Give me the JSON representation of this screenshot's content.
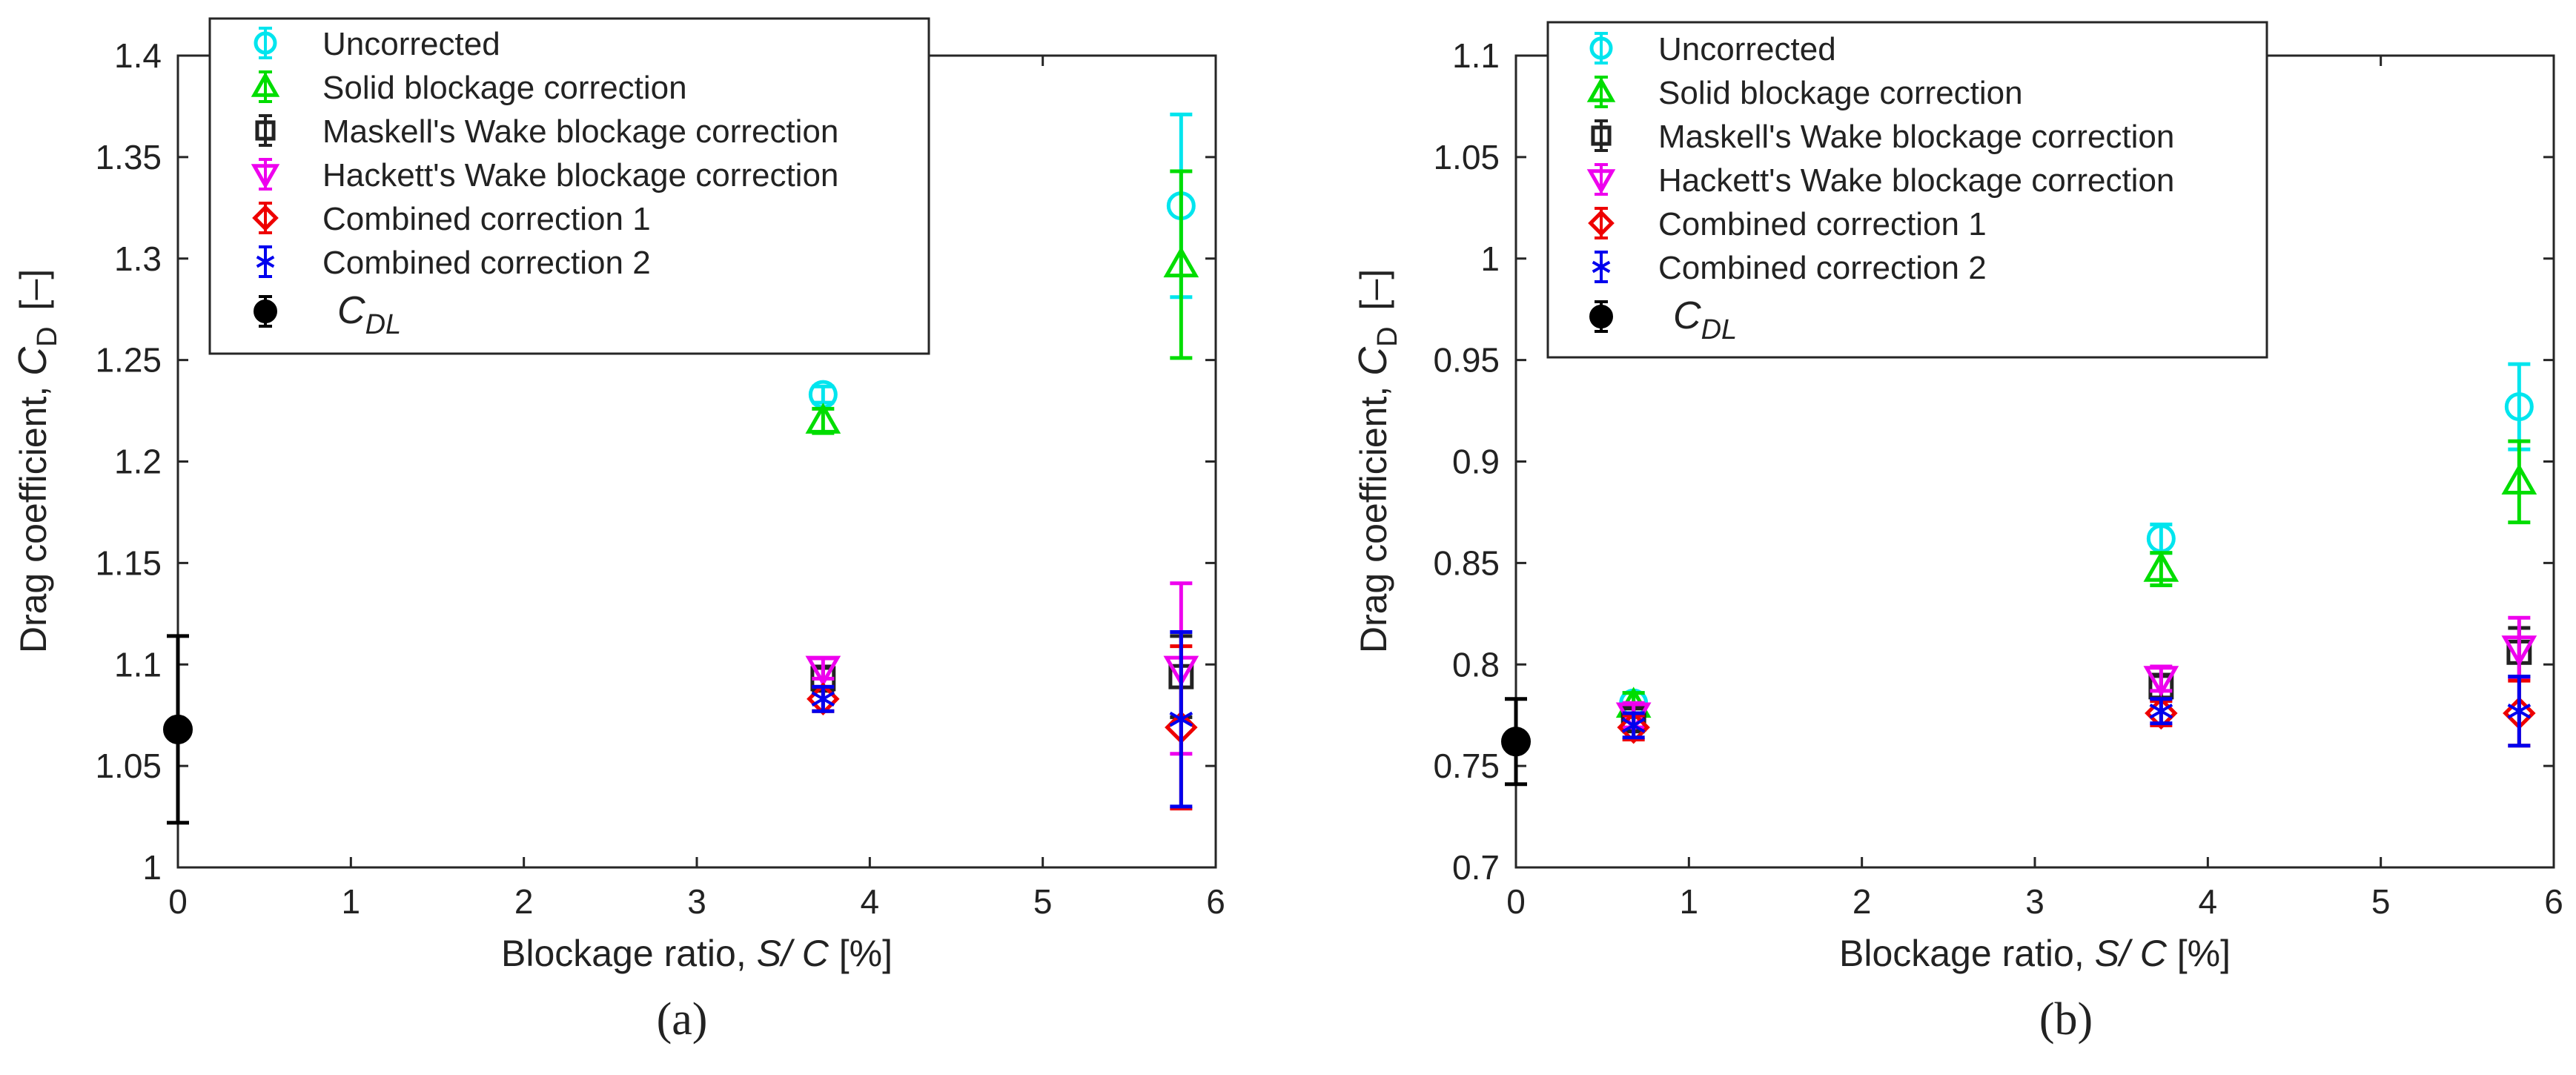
{
  "chart_data": [
    {
      "type": "scatter",
      "panel_caption": "(a)",
      "xlabel_prefix": "Blockage ratio, ",
      "xlabel_var": "S/ C",
      "xlabel_unit": " [%]",
      "ylabel_prefix": "Drag coefficient, ",
      "ylabel_var": "C",
      "ylabel_sub": "D",
      "ylabel_unit": "[–]",
      "xlim": [
        0,
        6
      ],
      "ylim": [
        1.0,
        1.4
      ],
      "xticks": [
        0,
        1,
        2,
        3,
        4,
        5,
        6
      ],
      "yticks": [
        1,
        1.05,
        1.1,
        1.15,
        1.2,
        1.25,
        1.3,
        1.35,
        1.4
      ],
      "yticklabels": [
        "1",
        "1.05",
        "1.1",
        "1.15",
        "1.2",
        "1.25",
        "1.3",
        "1.35",
        "1.4"
      ],
      "legend_position": "top-left",
      "series": [
        {
          "name": "Uncorrected",
          "color": "#00e5ee",
          "marker": "circle",
          "points": [
            {
              "x": 3.73,
              "y": 1.233,
              "err": 0.004
            },
            {
              "x": 5.8,
              "y": 1.326,
              "err": 0.045
            }
          ]
        },
        {
          "name": "Solid blockage correction",
          "color": "#00dd00",
          "marker": "triangle-up",
          "points": [
            {
              "x": 3.73,
              "y": 1.22,
              "err": 0.006
            },
            {
              "x": 5.8,
              "y": 1.297,
              "err": 0.046
            }
          ]
        },
        {
          "name": "Maskell's Wake blockage correction",
          "color": "#222222",
          "marker": "square",
          "points": [
            {
              "x": 3.73,
              "y": 1.093,
              "err": 0.006
            },
            {
              "x": 5.8,
              "y": 1.094,
              "err": 0.02
            }
          ]
        },
        {
          "name": "Hackett's Wake blockage correction",
          "color": "#ee00ee",
          "marker": "triangle-down",
          "points": [
            {
              "x": 3.73,
              "y": 1.098,
              "err": 0.005
            },
            {
              "x": 5.8,
              "y": 1.098,
              "err": 0.042
            }
          ]
        },
        {
          "name": "Combined correction 1",
          "color": "#ee0000",
          "marker": "diamond",
          "points": [
            {
              "x": 3.73,
              "y": 1.083,
              "err": 0.006
            },
            {
              "x": 5.8,
              "y": 1.069,
              "err": 0.04
            }
          ]
        },
        {
          "name": "Combined correction 2",
          "color": "#0000ee",
          "marker": "asterisk",
          "points": [
            {
              "x": 3.73,
              "y": 1.083,
              "err": 0.006
            },
            {
              "x": 5.8,
              "y": 1.073,
              "err": 0.043
            }
          ]
        },
        {
          "name": "C_DL",
          "label_main": "C",
          "label_sub": "DL",
          "color": "#000000",
          "marker": "filled-circle",
          "points": [
            {
              "x": 0,
              "y": 1.068,
              "err": 0.046
            }
          ]
        }
      ]
    },
    {
      "type": "scatter",
      "panel_caption": "(b)",
      "xlabel_prefix": "Blockage ratio, ",
      "xlabel_var": "S/ C",
      "xlabel_unit": " [%]",
      "ylabel_prefix": "Drag coefficient, ",
      "ylabel_var": "C",
      "ylabel_sub": "D",
      "ylabel_unit": "[–]",
      "xlim": [
        0,
        6
      ],
      "ylim": [
        0.7,
        1.1
      ],
      "xticks": [
        0,
        1,
        2,
        3,
        4,
        5,
        6
      ],
      "yticks": [
        0.7,
        0.75,
        0.8,
        0.85,
        0.9,
        0.95,
        1,
        1.05,
        1.1
      ],
      "yticklabels": [
        "0.7",
        "0.75",
        "0.8",
        "0.85",
        "0.9",
        "0.95",
        "1",
        "1.05",
        "1.1"
      ],
      "legend_position": "top-left",
      "series": [
        {
          "name": "Uncorrected",
          "color": "#00e5ee",
          "marker": "circle",
          "points": [
            {
              "x": 0.68,
              "y": 0.781,
              "err": 0.005
            },
            {
              "x": 3.73,
              "y": 0.862,
              "err": 0.007
            },
            {
              "x": 5.8,
              "y": 0.927,
              "err": 0.021
            }
          ]
        },
        {
          "name": "Solid blockage correction",
          "color": "#00dd00",
          "marker": "triangle-up",
          "points": [
            {
              "x": 0.68,
              "y": 0.78,
              "err": 0.006
            },
            {
              "x": 3.73,
              "y": 0.847,
              "err": 0.008
            },
            {
              "x": 5.8,
              "y": 0.89,
              "err": 0.02
            }
          ]
        },
        {
          "name": "Maskell's Wake blockage correction",
          "color": "#222222",
          "marker": "square",
          "points": [
            {
              "x": 0.68,
              "y": 0.773,
              "err": 0.006
            },
            {
              "x": 3.73,
              "y": 0.789,
              "err": 0.006
            },
            {
              "x": 5.8,
              "y": 0.806,
              "err": 0.012
            }
          ]
        },
        {
          "name": "Hackett's Wake blockage correction",
          "color": "#ee00ee",
          "marker": "triangle-down",
          "points": [
            {
              "x": 0.68,
              "y": 0.775,
              "err": 0.006
            },
            {
              "x": 3.73,
              "y": 0.793,
              "err": 0.006
            },
            {
              "x": 5.8,
              "y": 0.808,
              "err": 0.015
            }
          ]
        },
        {
          "name": "Combined correction 1",
          "color": "#ee0000",
          "marker": "diamond",
          "points": [
            {
              "x": 0.68,
              "y": 0.769,
              "err": 0.006
            },
            {
              "x": 3.73,
              "y": 0.776,
              "err": 0.006
            },
            {
              "x": 5.8,
              "y": 0.776,
              "err": 0.016
            }
          ]
        },
        {
          "name": "Combined correction 2",
          "color": "#0000ee",
          "marker": "asterisk",
          "points": [
            {
              "x": 0.68,
              "y": 0.77,
              "err": 0.006
            },
            {
              "x": 3.73,
              "y": 0.777,
              "err": 0.006
            },
            {
              "x": 5.8,
              "y": 0.777,
              "err": 0.017
            }
          ]
        },
        {
          "name": "C_DL",
          "label_main": "C",
          "label_sub": "DL",
          "color": "#000000",
          "marker": "filled-circle",
          "points": [
            {
              "x": 0,
              "y": 0.762,
              "err": 0.021
            }
          ]
        }
      ]
    }
  ]
}
